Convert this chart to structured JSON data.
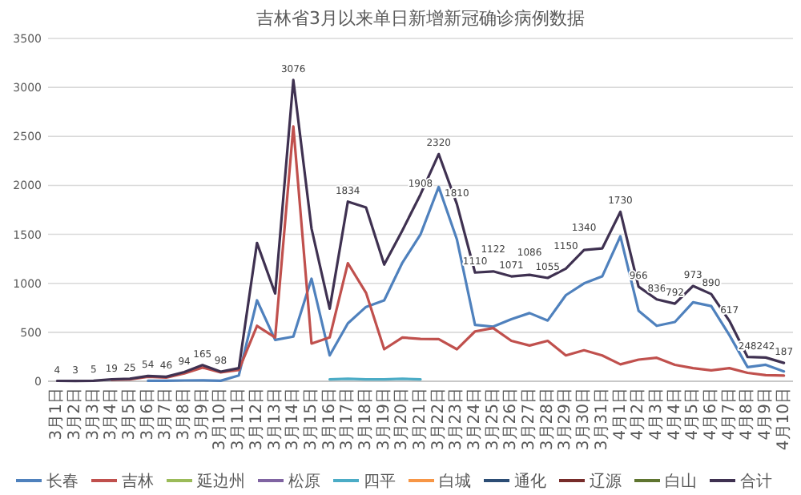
{
  "chart_data": {
    "type": "line",
    "title": "吉林省3月以来单日新增新冠确诊病例数据",
    "categories": [
      "3月1日",
      "3月2日",
      "3月3日",
      "3月4日",
      "3月5日",
      "3月6日",
      "3月7日",
      "3月8日",
      "3月9日",
      "3月10日",
      "3月11日",
      "3月12日",
      "3月13日",
      "3月14日",
      "3月15日",
      "3月16日",
      "3月17日",
      "3月18日",
      "3月19日",
      "3月20日",
      "3月21日",
      "3月22日",
      "3月23日",
      "3月24日",
      "3月25日",
      "3月26日",
      "3月27日",
      "3月28日",
      "3月29日",
      "3月30日",
      "3月31日",
      "4月1日",
      "4月2日",
      "4月3日",
      "4月4日",
      "4月5日",
      "4月6日",
      "4月7日",
      "4月8日",
      "4月9日",
      "4月10日"
    ],
    "series": [
      {
        "name": "长春",
        "color": "#4f81bd",
        "values": [
          null,
          null,
          null,
          null,
          null,
          5,
          5,
          8,
          10,
          5,
          60,
          826,
          422,
          456,
          1047,
          264,
          591,
          759,
          826,
          1210,
          1500,
          1984,
          1450,
          576,
          558,
          634,
          696,
          620,
          879,
          999,
          1071,
          1480,
          720,
          566,
          605,
          807,
          768,
          471,
          144,
          168,
          101
        ]
      },
      {
        "name": "吉林",
        "color": "#c0504d",
        "values": [
          null,
          null,
          null,
          15,
          20,
          45,
          38,
          80,
          140,
          90,
          115,
          566,
          447,
          2601,
          385,
          447,
          1206,
          903,
          327,
          447,
          432,
          430,
          327,
          509,
          543,
          413,
          365,
          413,
          264,
          317,
          264,
          173,
          221,
          240,
          168,
          134,
          111,
          134,
          86,
          62,
          58
        ]
      },
      {
        "name": "延边州",
        "color": "#9bbb59",
        "values": [
          null,
          null,
          null,
          null,
          null,
          null,
          null,
          null,
          null,
          null,
          null,
          null,
          null,
          null,
          null,
          null,
          null,
          null,
          null,
          null,
          null,
          null,
          null,
          null,
          null,
          null,
          null,
          null,
          null,
          null,
          null,
          null,
          null,
          null,
          null,
          null,
          null,
          null,
          null,
          null,
          null
        ]
      },
      {
        "name": "松原",
        "color": "#8064a2",
        "values": [
          null,
          null,
          null,
          null,
          null,
          null,
          null,
          null,
          null,
          null,
          null,
          null,
          null,
          null,
          null,
          null,
          null,
          null,
          null,
          null,
          null,
          null,
          null,
          null,
          null,
          null,
          null,
          null,
          null,
          null,
          null,
          null,
          null,
          null,
          null,
          null,
          null,
          null,
          null,
          null,
          null
        ]
      },
      {
        "name": "四平",
        "color": "#4bacc6",
        "values": [
          null,
          null,
          null,
          null,
          null,
          null,
          null,
          null,
          null,
          null,
          null,
          null,
          null,
          null,
          null,
          20,
          25,
          20,
          20,
          25,
          20,
          null,
          null,
          null,
          null,
          null,
          null,
          null,
          null,
          null,
          null,
          null,
          null,
          null,
          null,
          null,
          null,
          null,
          null,
          null,
          null
        ]
      },
      {
        "name": "白城",
        "color": "#f79646",
        "values": [
          null,
          null,
          null,
          null,
          null,
          null,
          null,
          null,
          null,
          null,
          null,
          null,
          null,
          null,
          null,
          null,
          null,
          null,
          null,
          null,
          null,
          null,
          null,
          null,
          null,
          null,
          null,
          null,
          null,
          null,
          null,
          null,
          null,
          null,
          null,
          null,
          null,
          null,
          null,
          null,
          null
        ]
      },
      {
        "name": "通化",
        "color": "#2c4d75",
        "values": [
          null,
          null,
          null,
          null,
          null,
          null,
          null,
          null,
          null,
          null,
          null,
          null,
          null,
          null,
          null,
          null,
          null,
          null,
          null,
          null,
          null,
          null,
          null,
          null,
          null,
          null,
          null,
          null,
          null,
          null,
          null,
          null,
          null,
          null,
          null,
          null,
          null,
          null,
          null,
          null,
          null
        ]
      },
      {
        "name": "辽源",
        "color": "#772c2a",
        "values": [
          null,
          null,
          null,
          null,
          null,
          null,
          null,
          null,
          null,
          null,
          null,
          null,
          null,
          null,
          null,
          null,
          null,
          null,
          null,
          null,
          null,
          null,
          null,
          null,
          null,
          null,
          null,
          null,
          null,
          null,
          null,
          null,
          null,
          null,
          null,
          null,
          null,
          null,
          null,
          null,
          null
        ]
      },
      {
        "name": "白山",
        "color": "#5f7530",
        "values": [
          null,
          null,
          null,
          null,
          null,
          null,
          null,
          null,
          null,
          null,
          null,
          null,
          null,
          null,
          null,
          null,
          null,
          null,
          null,
          null,
          null,
          null,
          null,
          null,
          null,
          null,
          null,
          null,
          null,
          null,
          null,
          null,
          null,
          null,
          null,
          null,
          null,
          null,
          null,
          null,
          null
        ]
      },
      {
        "name": "合计",
        "color": "#3f3151",
        "values": [
          4,
          3,
          5,
          19,
          25,
          54,
          46,
          94,
          165,
          98,
          134,
          1412,
          896,
          3076,
          1560,
          741,
          1834,
          1774,
          1191,
          1540,
          1908,
          2320,
          1810,
          1110,
          1122,
          1071,
          1086,
          1055,
          1150,
          1340,
          1356,
          1730,
          966,
          836,
          792,
          973,
          890,
          617,
          248,
          242,
          187
        ],
        "value_labels": [
          "4",
          "3",
          "5",
          "19",
          "25",
          "54",
          "46",
          "94",
          "165",
          "98",
          null,
          null,
          null,
          "3076",
          null,
          null,
          "1834",
          null,
          null,
          null,
          "1908",
          "2320",
          "1810",
          "1110",
          "1122",
          "1071",
          "1086",
          "1055",
          "1150",
          "1340",
          null,
          "1730",
          "966",
          "836",
          "792",
          "973",
          "890",
          "617",
          "248",
          "242",
          "187"
        ]
      }
    ],
    "ylim": [
      0,
      3500
    ],
    "yticks": [
      0,
      500,
      1000,
      1500,
      2000,
      2500,
      3000,
      3500
    ],
    "grid": "y",
    "legend": "bottom"
  }
}
